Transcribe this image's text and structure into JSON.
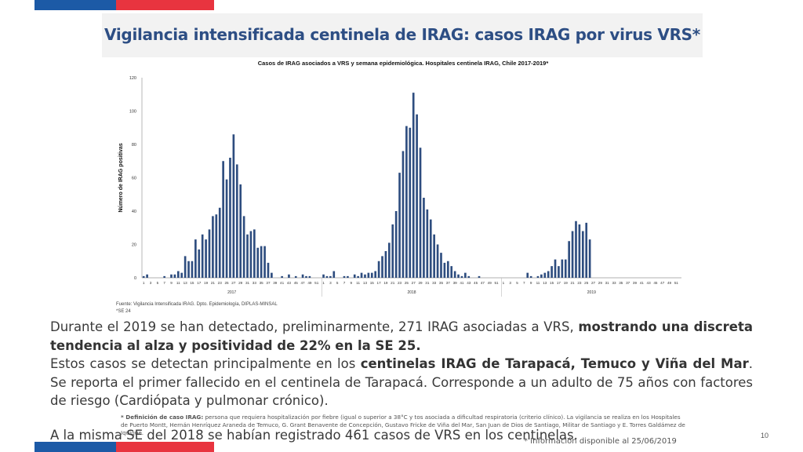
{
  "slide": {
    "title": "Vigilancia intensificada centinela de IRAG: casos IRAG por virus VRS*",
    "page_number": "10",
    "info_date": "* Información disponible al  25/06/2019"
  },
  "colors": {
    "brand_blue": "#1c5aa6",
    "brand_red": "#e8343f",
    "title_color": "#2d4e84",
    "bar_color": "#2e4d7f"
  },
  "text": {
    "p1_plain": "Durante el 2019 se han detectado, preliminarmente, 271 IRAG asociadas a VRS, ",
    "p1_bold": "mostrando una discreta tendencia al alza  y positividad de 22% en la SE 25.",
    "p2_plain_a": "Estos casos se detectan principalmente en los ",
    "p2_bold": "centinelas IRAG de Tarapacá, Temuco y Viña del Mar",
    "p2_plain_b": ". Se reporta el primer fallecido en el centinela de Tarapacá. Corresponde a un adulto de 75 años con factores de riesgo (Cardiópata y pulmonar crónico).",
    "p3": "A la misma SE del 2018 se habían registrado 461 casos de VRS en los centinelas.",
    "footnote_bold": "* Definición de caso IRAG:",
    "footnote_text": " persona que requiera hospitalización por fiebre (igual o superior a 38°C y tos asociada a dificultad respiratoria (criterio clínico). La vigilancia se realiza en los Hospitales de Puerto Montt, Hernán Henríquez Araneda de  Temuco, G. Grant Benavente de Concepción, Gustavo Fricke de Viña del Mar, San Juan de Dios de Santiago, Militar de Santiago y E. Torres Galdámez de Iquique."
  },
  "chart_data": {
    "type": "bar",
    "title": "Casos de IRAG asociados a  VRS y semana epidemiológica.  Hospitales centinela IRAG, Chile 2017-2019*",
    "ylabel": "Número de IRAG positivas",
    "ylim": [
      0,
      120
    ],
    "yticks": [
      "0",
      "20",
      "40",
      "60",
      "80",
      "100",
      "120"
    ],
    "x_tick_labels": [
      "1",
      "3",
      "5",
      "7",
      "9",
      "11",
      "13",
      "15",
      "17",
      "19",
      "21",
      "23",
      "25",
      "27",
      "29",
      "31",
      "33",
      "35",
      "37",
      "39",
      "41",
      "43",
      "45",
      "47",
      "49",
      "51"
    ],
    "year_labels": [
      "2017",
      "2018",
      "2019"
    ],
    "source": "Fuente: Vigilancia Intensificada IRAG. Dpto. Epidemiología, DIPLAS-MINSAL",
    "se_note": "*SE 24",
    "series": [
      {
        "year": "2017",
        "values": [
          1,
          2,
          0,
          0,
          0,
          0,
          1,
          0,
          2,
          2,
          4,
          3,
          13,
          10,
          10,
          23,
          17,
          26,
          23,
          29,
          37,
          38,
          42,
          70,
          59,
          72,
          86,
          68,
          56,
          37,
          26,
          28,
          29,
          18,
          19,
          19,
          9,
          3,
          0,
          0,
          1,
          0,
          2,
          0,
          1,
          0,
          2,
          1,
          1,
          0,
          0,
          0
        ]
      },
      {
        "year": "2018",
        "values": [
          2,
          1,
          1,
          4,
          0,
          0,
          1,
          1,
          0,
          2,
          1,
          3,
          2,
          3,
          3,
          4,
          10,
          13,
          16,
          21,
          32,
          40,
          63,
          76,
          91,
          90,
          111,
          98,
          78,
          48,
          41,
          35,
          26,
          20,
          15,
          9,
          10,
          7,
          4,
          2,
          1,
          3,
          1,
          0,
          0,
          1,
          0,
          0,
          0,
          0,
          0,
          0
        ]
      },
      {
        "year": "2019",
        "values": [
          0,
          0,
          0,
          0,
          0,
          0,
          0,
          3,
          1,
          0,
          1,
          2,
          3,
          4,
          7,
          11,
          7,
          11,
          11,
          22,
          28,
          34,
          32,
          28,
          33,
          23
        ]
      }
    ]
  }
}
